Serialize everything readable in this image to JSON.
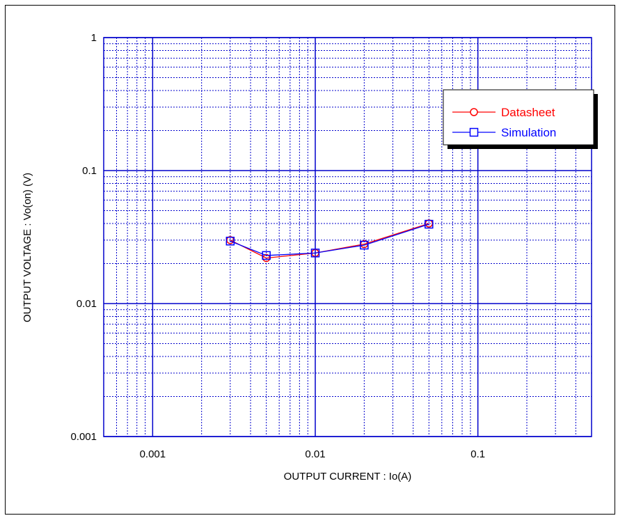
{
  "chart_data": {
    "type": "line",
    "title": "",
    "xlabel": "OUTPUT CURRENT : Io(A)",
    "ylabel": "OUTPUT VOLTAGE : Vo(on) (V)",
    "x_scale": "log",
    "y_scale": "log",
    "xlim": [
      0.0005,
      0.5
    ],
    "ylim": [
      0.001,
      1
    ],
    "x_ticks": [
      "0.001",
      "0.01",
      "0.1"
    ],
    "y_ticks": [
      "0.001",
      "0.01",
      "0.1",
      "1"
    ],
    "grid": true,
    "legend_position": "top-right",
    "colors": {
      "grid": "#0000cc",
      "axes": "#0000cc"
    },
    "series": [
      {
        "name": "Datasheet",
        "color": "#ff0000",
        "marker": "circle",
        "x": [
          0.003,
          0.005,
          0.01,
          0.02,
          0.05
        ],
        "y": [
          0.03,
          0.022,
          0.024,
          0.028,
          0.04
        ]
      },
      {
        "name": "Simulation",
        "color": "#0000ff",
        "marker": "square",
        "x": [
          0.003,
          0.005,
          0.01,
          0.02,
          0.05
        ],
        "y": [
          0.0295,
          0.023,
          0.024,
          0.0275,
          0.0395
        ]
      }
    ]
  }
}
